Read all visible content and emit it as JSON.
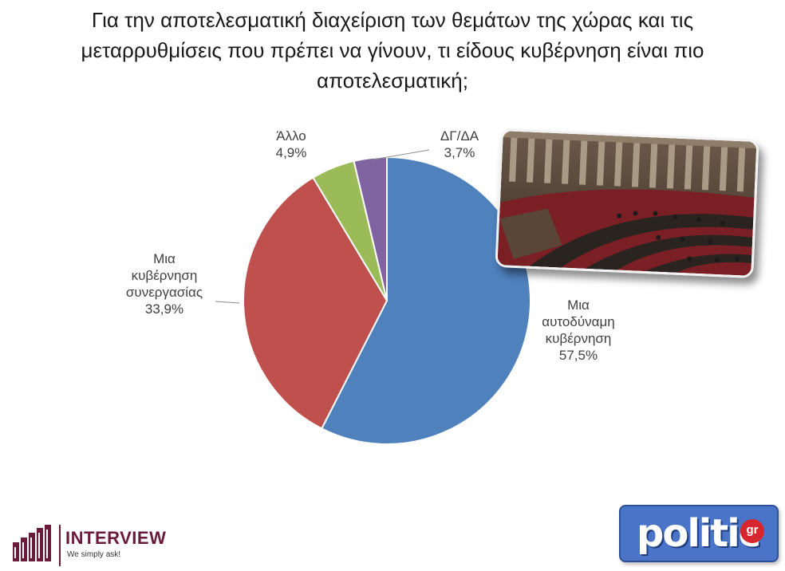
{
  "title": {
    "line1": "Για την αποτελεσματική διαχείριση των θεμάτων της χώρας και τις",
    "line2": "μεταρρυθμίσεις που πρέπει να γίνουν, τι είδους κυβέρνηση είναι πιο",
    "line3": "αποτελεσματική;"
  },
  "chart_data": {
    "type": "pie",
    "title": "Για την αποτελεσματική διαχείριση των θεμάτων της χώρας και τις μεταρρυθμίσεις που πρέπει να γίνουν, τι είδους κυβέρνηση είναι πιο αποτελεσματική;",
    "start": "12 o'clock, clockwise",
    "slices": [
      {
        "label_lines": [
          "Μια",
          "αυτοδύναμη",
          "κυβέρνηση"
        ],
        "value": 57.5,
        "value_label": "57,5%",
        "color": "#4f81bd"
      },
      {
        "label_lines": [
          "Μια",
          "κυβέρνηση",
          "συνεργασίας"
        ],
        "value": 33.9,
        "value_label": "33,9%",
        "color": "#c0504d"
      },
      {
        "label_lines": [
          "Άλλο"
        ],
        "value": 4.9,
        "value_label": "4,9%",
        "color": "#9bbb59"
      },
      {
        "label_lines": [
          "ΔΓ/ΔΑ"
        ],
        "value": 3.7,
        "value_label": "3,7%",
        "color": "#8064a2"
      }
    ]
  },
  "photo": {
    "icon": "parliament-photo"
  },
  "logos": {
    "interview": {
      "name": "INTERVIEW",
      "tagline": "We simply ask!",
      "color": "#6a1b3a"
    },
    "politic": {
      "name": "politic",
      "suffix": "gr",
      "color": "#4a74c8"
    }
  }
}
